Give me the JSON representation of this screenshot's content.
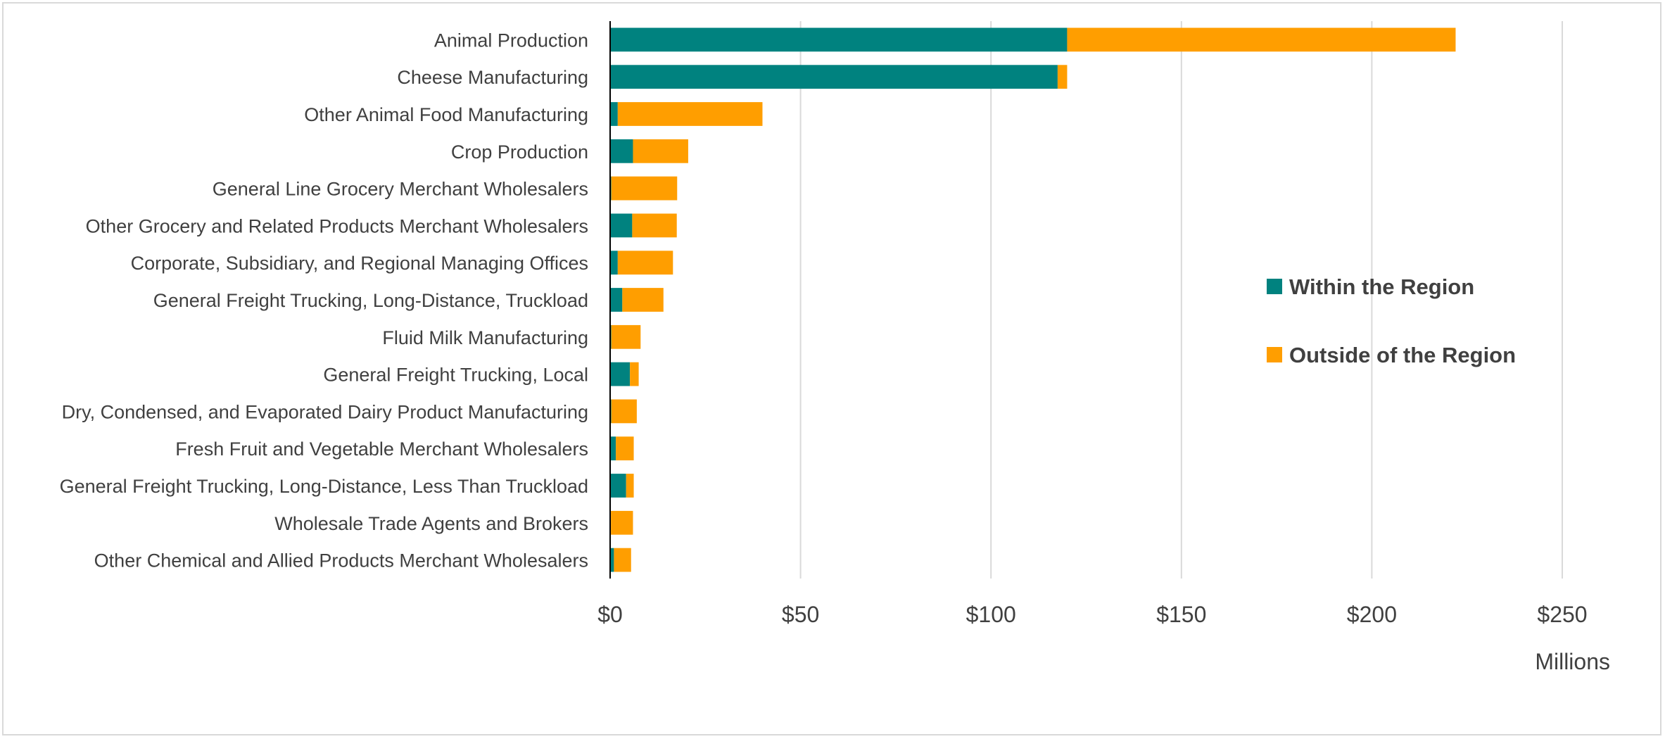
{
  "chart_data": {
    "type": "bar",
    "orientation": "horizontal",
    "stacked": true,
    "categories": [
      "Animal Production",
      "Cheese Manufacturing",
      "Other Animal Food Manufacturing",
      "Crop Production",
      "General Line Grocery Merchant Wholesalers",
      "Other Grocery and Related Products Merchant Wholesalers",
      "Corporate, Subsidiary, and Regional Managing Offices",
      "General Freight Trucking, Long-Distance, Truckload",
      "Fluid Milk Manufacturing",
      "General Freight Trucking, Local",
      "Dry, Condensed, and Evaporated Dairy Product Manufacturing",
      "Fresh Fruit and Vegetable Merchant Wholesalers",
      "General Freight Trucking, Long-Distance, Less Than Truckload",
      "Wholesale Trade Agents and Brokers",
      "Other Chemical and Allied Products Merchant Wholesalers"
    ],
    "series": [
      {
        "name": "Within the Region",
        "color": "#00827f",
        "values": [
          120,
          117.5,
          2,
          6,
          0.3,
          5.8,
          2,
          3.2,
          0.3,
          5.2,
          0.3,
          1.5,
          4.2,
          0.2,
          1
        ]
      },
      {
        "name": "Outside of the Region",
        "color": "#ff9e00",
        "values": [
          102,
          2.5,
          38,
          14.5,
          17.3,
          11.7,
          14.5,
          10.8,
          7.7,
          2.3,
          6.7,
          4.7,
          2,
          5.8,
          4.5
        ]
      }
    ],
    "x_ticks": [
      "$0",
      "$50",
      "$100",
      "$150",
      "$200",
      "$250"
    ],
    "xlim": [
      0,
      250
    ],
    "x_unit_label": "Millions",
    "grid": "vertical",
    "legend_position": "right"
  }
}
